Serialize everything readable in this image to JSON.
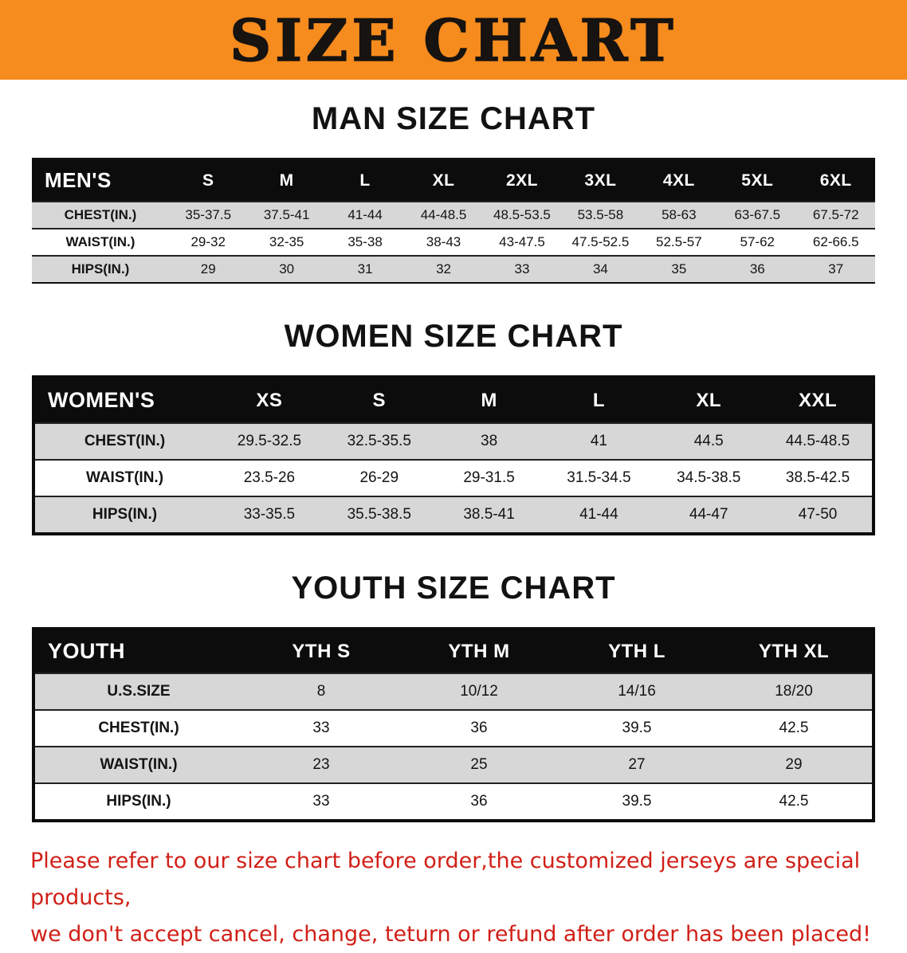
{
  "banner": {
    "title": "SIZE CHART",
    "bg_color": "#f68b1e"
  },
  "sections": [
    {
      "heading": "MAN SIZE CHART",
      "table": {
        "header": [
          "MEN'S",
          "S",
          "M",
          "L",
          "XL",
          "2XL",
          "3XL",
          "4XL",
          "5XL",
          "6XL"
        ],
        "rows": [
          [
            "CHEST(IN.)",
            "35-37.5",
            "37.5-41",
            "41-44",
            "44-48.5",
            "48.5-53.5",
            "53.5-58",
            "58-63",
            "63-67.5",
            "67.5-72"
          ],
          [
            "WAIST(IN.)",
            "29-32",
            "32-35",
            "35-38",
            "38-43",
            "43-47.5",
            "47.5-52.5",
            "52.5-57",
            "57-62",
            "62-66.5"
          ],
          [
            "HIPS(IN.)",
            "29",
            "30",
            "31",
            "32",
            "33",
            "34",
            "35",
            "36",
            "37"
          ]
        ]
      }
    },
    {
      "heading": "WOMEN SIZE CHART",
      "table": {
        "header": [
          "WOMEN'S",
          "XS",
          "S",
          "M",
          "L",
          "XL",
          "XXL"
        ],
        "rows": [
          [
            "CHEST(IN.)",
            "29.5-32.5",
            "32.5-35.5",
            "38",
            "41",
            "44.5",
            "44.5-48.5"
          ],
          [
            "WAIST(IN.)",
            "23.5-26",
            "26-29",
            "29-31.5",
            "31.5-34.5",
            "34.5-38.5",
            "38.5-42.5"
          ],
          [
            "HIPS(IN.)",
            "33-35.5",
            "35.5-38.5",
            "38.5-41",
            "41-44",
            "44-47",
            "47-50"
          ]
        ]
      }
    },
    {
      "heading": "YOUTH SIZE CHART",
      "table": {
        "header": [
          "YOUTH",
          "YTH S",
          "YTH M",
          "YTH L",
          "YTH XL"
        ],
        "rows": [
          [
            "U.S.SIZE",
            "8",
            "10/12",
            "14/16",
            "18/20"
          ],
          [
            "CHEST(IN.)",
            "33",
            "36",
            "39.5",
            "42.5"
          ],
          [
            "WAIST(IN.)",
            "23",
            "25",
            "27",
            "29"
          ],
          [
            "HIPS(IN.)",
            "33",
            "36",
            "39.5",
            "42.5"
          ]
        ]
      }
    }
  ],
  "footer": {
    "line1": "Please refer to our size chart before order,the customized jerseys are special products,",
    "line2": "we don't accept cancel, change, teturn or refund after order has been placed!",
    "text_color": "#d01f17"
  }
}
